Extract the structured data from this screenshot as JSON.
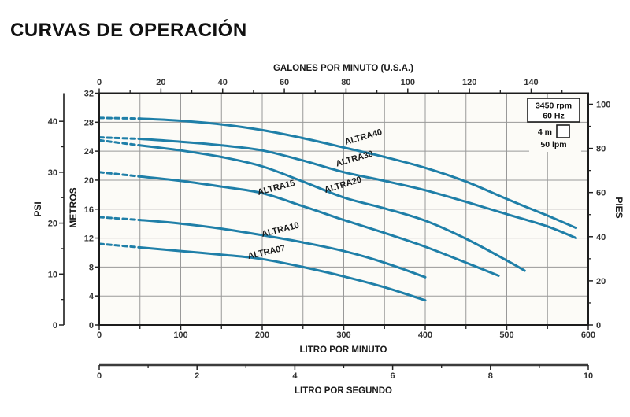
{
  "title": "CURVAS DE OPERACIÓN",
  "legend": {
    "rpm": "3450 rpm",
    "hz": "60 Hz",
    "grid_cell_height": "4 m",
    "grid_cell_width": "50 lpm"
  },
  "chart_data": {
    "type": "line",
    "title": "CURVAS DE OPERACIÓN",
    "xlim_lpm": [
      0,
      600
    ],
    "ylim_m": [
      0,
      32
    ],
    "grid": {
      "x_step_lpm": 50,
      "y_step_m": 4
    },
    "curve_color": "#1f7fa8",
    "x_axes": {
      "top": {
        "label": "GALONES POR MINUTO (U.S.A.)",
        "unit": "gpm",
        "major_ticks": [
          0,
          20,
          40,
          60,
          80,
          100,
          120,
          140
        ],
        "minor_ticks": [
          10,
          30,
          50,
          70,
          90,
          110,
          130,
          150
        ]
      },
      "bottom": {
        "label": "LITRO POR MINUTO",
        "unit": "lpm",
        "major_ticks": [
          0,
          100,
          200,
          300,
          400,
          500,
          600
        ],
        "minor_ticks": [
          50,
          150,
          250,
          350,
          450,
          550
        ]
      },
      "bottom2": {
        "label": "LITRO POR SEGUNDO",
        "unit": "lps",
        "major_ticks": [
          0,
          2,
          4,
          6,
          8,
          10
        ],
        "minor_ticks": [
          1,
          3,
          5,
          7,
          9
        ]
      }
    },
    "y_axes": {
      "left_inner": {
        "label": "METROS",
        "unit": "m",
        "major_ticks": [
          0,
          4,
          8,
          12,
          16,
          20,
          24,
          28,
          32
        ],
        "minor_ticks": []
      },
      "left_outer": {
        "label": "PSI",
        "unit": "psi",
        "major_ticks": [
          0,
          10,
          20,
          30,
          40
        ],
        "minor_ticks": [
          5,
          15,
          25,
          35
        ]
      },
      "right": {
        "label": "PIES",
        "unit": "ft",
        "major_ticks": [
          0,
          20,
          40,
          60,
          80,
          100
        ],
        "minor_ticks": [
          10,
          30,
          50,
          70,
          90
        ]
      }
    },
    "series": [
      {
        "name": "ALTRA40",
        "dashed_until_lpm": 50,
        "label_pos": {
          "lpm": 325,
          "m": 25.6,
          "angle": -16
        },
        "points_lpm_m": [
          [
            0,
            28.6
          ],
          [
            50,
            28.5
          ],
          [
            100,
            28.2
          ],
          [
            150,
            27.7
          ],
          [
            200,
            26.9
          ],
          [
            250,
            25.8
          ],
          [
            300,
            24.5
          ],
          [
            350,
            23.2
          ],
          [
            400,
            21.7
          ],
          [
            450,
            19.8
          ],
          [
            500,
            17.4
          ],
          [
            550,
            15.1
          ],
          [
            585,
            13.4
          ]
        ]
      },
      {
        "name": "ALTRA30",
        "dashed_until_lpm": 50,
        "label_pos": {
          "lpm": 314,
          "m": 22.6,
          "angle": -16
        },
        "points_lpm_m": [
          [
            0,
            25.9
          ],
          [
            50,
            25.7
          ],
          [
            100,
            25.3
          ],
          [
            150,
            24.8
          ],
          [
            200,
            24.1
          ],
          [
            250,
            22.7
          ],
          [
            300,
            21.1
          ],
          [
            350,
            19.9
          ],
          [
            400,
            18.6
          ],
          [
            450,
            17.0
          ],
          [
            500,
            15.3
          ],
          [
            550,
            13.6
          ],
          [
            585,
            12.0
          ]
        ]
      },
      {
        "name": "ALTRA20",
        "dashed_until_lpm": 50,
        "label_pos": {
          "lpm": 300,
          "m": 19.0,
          "angle": -17
        },
        "points_lpm_m": [
          [
            0,
            25.5
          ],
          [
            50,
            24.8
          ],
          [
            100,
            24.1
          ],
          [
            150,
            23.2
          ],
          [
            200,
            21.9
          ],
          [
            250,
            19.8
          ],
          [
            300,
            17.6
          ],
          [
            350,
            16.1
          ],
          [
            400,
            14.4
          ],
          [
            450,
            11.9
          ],
          [
            500,
            8.9
          ],
          [
            522,
            7.5
          ]
        ]
      },
      {
        "name": "ALTRA15",
        "dashed_until_lpm": 50,
        "label_pos": {
          "lpm": 218,
          "m": 18.6,
          "angle": -15
        },
        "points_lpm_m": [
          [
            0,
            21.1
          ],
          [
            50,
            20.5
          ],
          [
            100,
            19.9
          ],
          [
            150,
            19.1
          ],
          [
            200,
            18.2
          ],
          [
            250,
            16.4
          ],
          [
            300,
            14.5
          ],
          [
            350,
            12.7
          ],
          [
            400,
            10.8
          ],
          [
            450,
            8.6
          ],
          [
            490,
            6.8
          ]
        ]
      },
      {
        "name": "ALTRA10",
        "dashed_until_lpm": 50,
        "label_pos": {
          "lpm": 223,
          "m": 12.8,
          "angle": -14
        },
        "points_lpm_m": [
          [
            0,
            14.9
          ],
          [
            50,
            14.5
          ],
          [
            100,
            14.0
          ],
          [
            150,
            13.3
          ],
          [
            200,
            12.4
          ],
          [
            250,
            11.4
          ],
          [
            300,
            10.2
          ],
          [
            350,
            8.6
          ],
          [
            400,
            6.6
          ]
        ]
      },
      {
        "name": "ALTRA07",
        "dashed_until_lpm": 50,
        "label_pos": {
          "lpm": 206,
          "m": 9.7,
          "angle": -13
        },
        "points_lpm_m": [
          [
            0,
            11.2
          ],
          [
            50,
            10.7
          ],
          [
            100,
            10.2
          ],
          [
            150,
            9.7
          ],
          [
            200,
            9.1
          ],
          [
            250,
            8.0
          ],
          [
            300,
            6.7
          ],
          [
            350,
            5.2
          ],
          [
            400,
            3.4
          ]
        ]
      }
    ]
  }
}
